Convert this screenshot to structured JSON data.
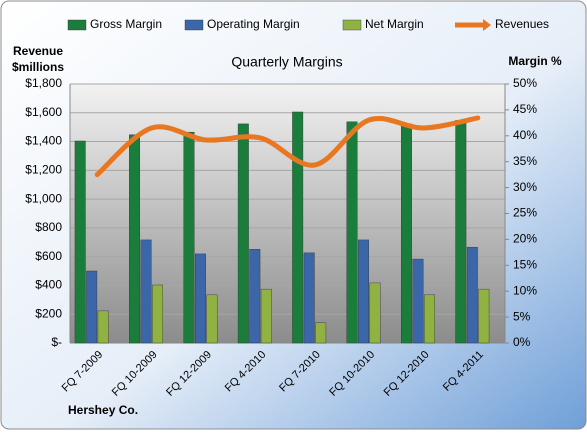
{
  "chart_data": {
    "type": "bar-line",
    "title": "Quarterly Margins",
    "ylabel": [
      "Revenue",
      "$millions"
    ],
    "y2label": "Margin %",
    "source": "Hershey Co.",
    "categories": [
      "FQ 7-2009",
      "FQ 10-2009",
      "FQ 12-2009",
      "FQ 4-2010",
      "FQ 7-2010",
      "FQ 10-2010",
      "FQ 12-2010",
      "FQ 4-2011"
    ],
    "series": [
      {
        "name": "Gross Margin",
        "type": "bar",
        "axis": "y2",
        "color": "#1b7d3c",
        "values": [
          39.0,
          40.2,
          40.7,
          42.3,
          44.6,
          42.7,
          42.3,
          43.0
        ]
      },
      {
        "name": "Operating Margin",
        "type": "bar",
        "axis": "y2",
        "color": "#3b66a8",
        "values": [
          13.9,
          19.9,
          17.2,
          18.1,
          17.4,
          19.9,
          16.2,
          18.5
        ]
      },
      {
        "name": "Net Margin",
        "type": "bar",
        "axis": "y2",
        "color": "#8fb243",
        "values": [
          6.2,
          11.2,
          9.3,
          10.4,
          3.9,
          11.6,
          9.3,
          10.4
        ]
      },
      {
        "name": "Revenues",
        "type": "line",
        "axis": "y",
        "color": "#e87722",
        "values": [
          1170,
          1494,
          1411,
          1425,
          1237,
          1550,
          1494,
          1564
        ]
      }
    ],
    "ylim": [
      0,
      1800
    ],
    "yticks": [
      {
        "value": 0,
        "label": "$-"
      },
      {
        "value": 200,
        "label": "$200"
      },
      {
        "value": 400,
        "label": "$400"
      },
      {
        "value": 600,
        "label": "$600"
      },
      {
        "value": 800,
        "label": "$800"
      },
      {
        "value": 1000,
        "label": "$1,000"
      },
      {
        "value": 1200,
        "label": "$1,200"
      },
      {
        "value": 1400,
        "label": "$1,400"
      },
      {
        "value": 1600,
        "label": "$1,600"
      },
      {
        "value": 1800,
        "label": "$1,800"
      }
    ],
    "y2lim": [
      0,
      50
    ],
    "y2ticks": [
      {
        "value": 0,
        "label": "0%"
      },
      {
        "value": 5,
        "label": "5%"
      },
      {
        "value": 10,
        "label": "10%"
      },
      {
        "value": 15,
        "label": "15%"
      },
      {
        "value": 20,
        "label": "20%"
      },
      {
        "value": 25,
        "label": "25%"
      },
      {
        "value": 30,
        "label": "30%"
      },
      {
        "value": 35,
        "label": "35%"
      },
      {
        "value": 40,
        "label": "40%"
      },
      {
        "value": 45,
        "label": "45%"
      },
      {
        "value": 50,
        "label": "50%"
      }
    ],
    "grid": true
  }
}
